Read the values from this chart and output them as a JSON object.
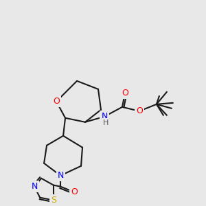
{
  "bg_color": "#e8e8e8",
  "bond_color": "#1a1a1a",
  "bond_lw": 1.5,
  "atom_colors": {
    "O": "#ff0000",
    "N": "#0000ff",
    "S": "#ccaa00",
    "C": "#1a1a1a"
  },
  "font_size": 9,
  "font_size_small": 8
}
